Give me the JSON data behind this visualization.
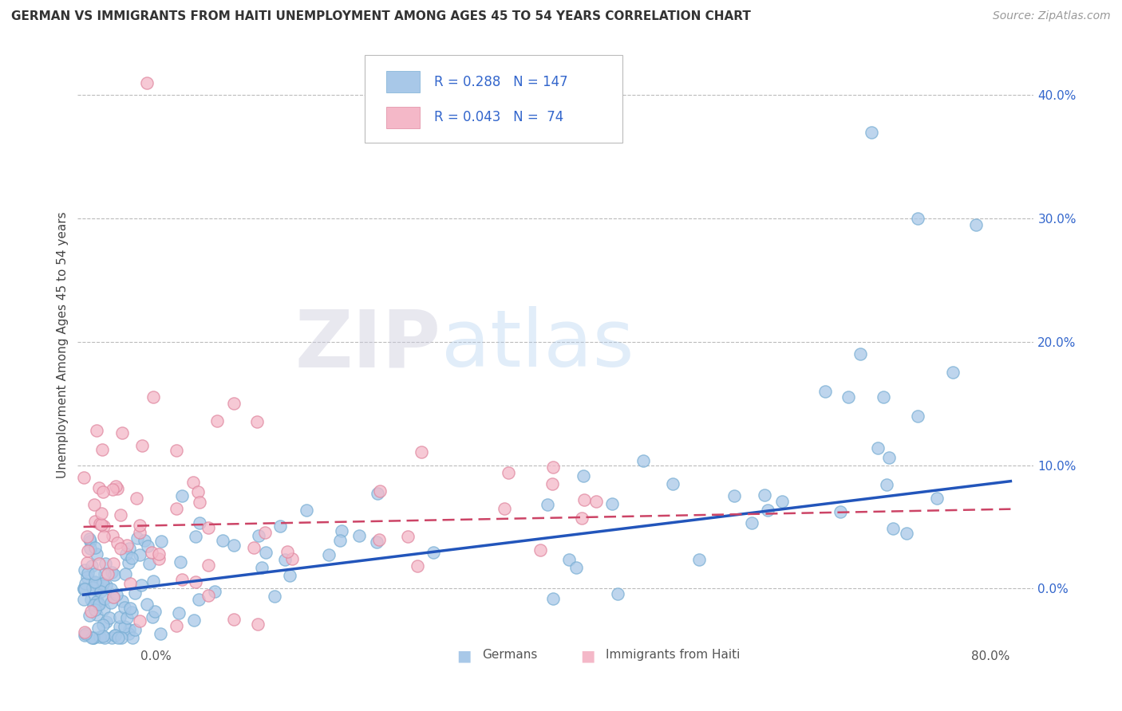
{
  "title": "GERMAN VS IMMIGRANTS FROM HAITI UNEMPLOYMENT AMONG AGES 45 TO 54 YEARS CORRELATION CHART",
  "source": "Source: ZipAtlas.com",
  "ylabel": "Unemployment Among Ages 45 to 54 years",
  "watermark_zip": "ZIP",
  "watermark_atlas": "atlas",
  "xlim": [
    -0.005,
    0.82
  ],
  "ylim": [
    -0.055,
    0.45
  ],
  "yticks": [
    0.0,
    0.1,
    0.2,
    0.3,
    0.4
  ],
  "ytick_labels": [
    "0.0%",
    "10.0%",
    "20.0%",
    "30.0%",
    "40.0%"
  ],
  "x_left_label": "0.0%",
  "x_right_label": "80.0%",
  "german_color": "#A8C8E8",
  "german_edge_color": "#7AAFD4",
  "haiti_color": "#F4B8C8",
  "haiti_edge_color": "#E088A0",
  "german_line_color": "#2255BB",
  "haiti_line_color": "#CC4466",
  "title_fontsize": 11,
  "source_fontsize": 10,
  "axis_label_fontsize": 11,
  "tick_fontsize": 11,
  "legend_fontsize": 12,
  "background_color": "#FFFFFF",
  "grid_color": "#BBBBBB",
  "german_intercept": -0.005,
  "german_slope": 0.115,
  "haiti_intercept": 0.05,
  "haiti_slope": 0.018,
  "german_N": 147,
  "haiti_N": 74
}
